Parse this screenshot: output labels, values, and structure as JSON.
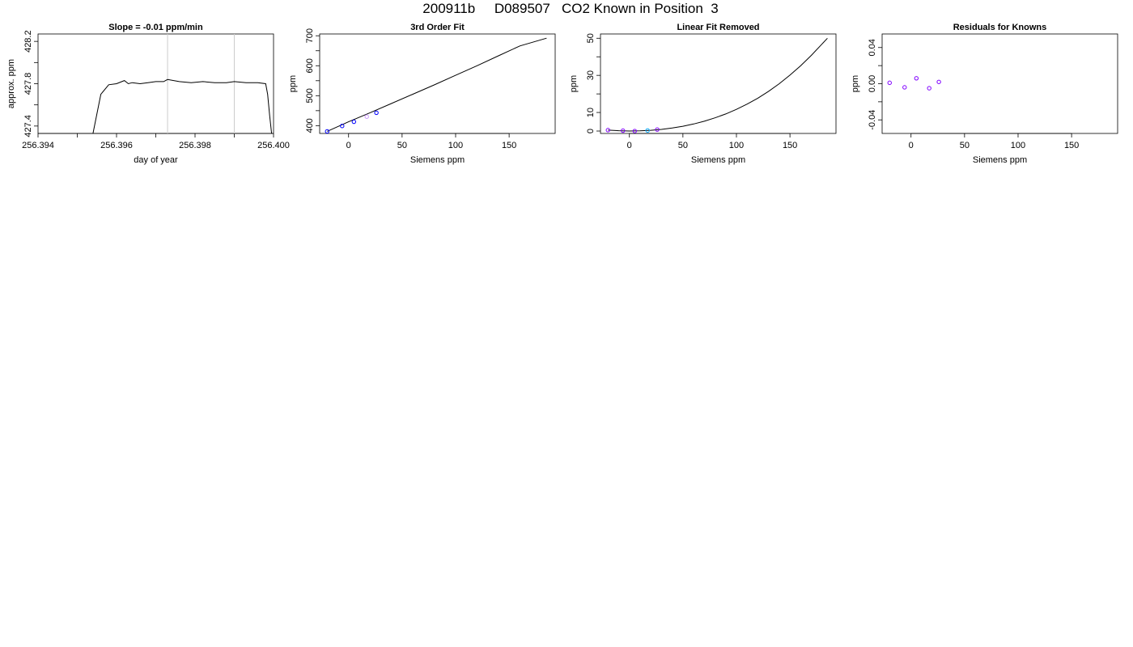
{
  "page_title": "200911b     D089507   CO2 Known in Position  3",
  "chart_data": [
    {
      "type": "line",
      "title": "Slope =  -0.01  ppm/min",
      "xlabel": "day of year",
      "ylabel": "approx. ppm",
      "xlim": [
        256.394,
        256.4
      ],
      "ylim": [
        427.33,
        428.27
      ],
      "x_ticks": [
        256.394,
        256.395,
        256.396,
        256.397,
        256.398,
        256.399,
        256.4
      ],
      "x_tick_labels": [
        "256.394",
        "",
        "256.396",
        "",
        "256.398",
        "",
        "256.400"
      ],
      "y_ticks": [
        427.4,
        427.6,
        427.8,
        428.0,
        428.2
      ],
      "y_tick_labels": [
        "427.4",
        "",
        "427.8",
        "",
        "428.2"
      ],
      "vlines": [
        256.3973,
        256.399
      ],
      "vline_color": "#cccccc",
      "line_color": "#000000",
      "accent_color": "#ff0000",
      "series": [
        {
          "x": [
            256.3954,
            256.3956,
            256.3958,
            256.396,
            256.3962,
            256.3963,
            256.3964,
            256.3966,
            256.3968,
            256.397,
            256.3972,
            256.3973,
            256.3976,
            256.3979,
            256.3982,
            256.3985,
            256.3988,
            256.399,
            256.3993,
            256.3996,
            256.3998,
            256.39985,
            256.3999,
            256.39995
          ],
          "y": [
            427.33,
            427.7,
            427.79,
            427.8,
            427.83,
            427.8,
            427.81,
            427.8,
            427.81,
            427.82,
            427.82,
            427.84,
            427.82,
            427.81,
            427.82,
            427.81,
            427.81,
            427.82,
            427.81,
            427.81,
            427.8,
            427.7,
            427.5,
            427.33
          ]
        }
      ]
    },
    {
      "type": "scatter",
      "title": "3rd Order Fit",
      "xlabel": "Siemens ppm",
      "ylabel": "ppm",
      "xlim": [
        -27,
        193
      ],
      "ylim": [
        374,
        706
      ],
      "x_ticks": [
        0,
        50,
        100,
        150
      ],
      "x_tick_labels": [
        "0",
        "50",
        "100",
        "150"
      ],
      "y_ticks": [
        400,
        450,
        500,
        550,
        600,
        650,
        700
      ],
      "y_tick_labels": [
        "400",
        "",
        "500",
        "",
        "600",
        "",
        "700"
      ],
      "curve_color": "#000000",
      "curve": {
        "x": [
          -20,
          0,
          20,
          40,
          60,
          80,
          100,
          120,
          140,
          160,
          185
        ],
        "y": [
          381,
          413,
          443,
          474,
          505,
          536,
          568,
          600,
          633,
          666,
          692
        ]
      },
      "points": {
        "x": [
          -20,
          -6,
          5,
          17,
          26
        ],
        "y": [
          381,
          399,
          413,
          430,
          443
        ],
        "colors": [
          "#0000ff",
          "#0000ff",
          "#0000ff",
          "#cc99ff",
          "#0000ff"
        ]
      }
    },
    {
      "type": "scatter",
      "title": "Linear Fit Removed",
      "xlabel": "Siemens ppm",
      "ylabel": "ppm",
      "xlim": [
        -27,
        193
      ],
      "ylim": [
        -1.3,
        52.3
      ],
      "x_ticks": [
        0,
        50,
        100,
        150
      ],
      "x_tick_labels": [
        "0",
        "50",
        "100",
        "150"
      ],
      "y_ticks": [
        0,
        10,
        20,
        30,
        40,
        50
      ],
      "y_tick_labels": [
        "0",
        "10",
        "",
        "30",
        "",
        "50"
      ],
      "curve_color": "#000000",
      "curve": {
        "x": [
          -20,
          -10,
          0,
          10,
          20,
          30,
          40,
          50,
          60,
          70,
          80,
          90,
          100,
          110,
          120,
          130,
          140,
          150,
          160,
          170,
          185
        ],
        "y": [
          0.5,
          0.2,
          0,
          0.1,
          0.4,
          0.9,
          1.6,
          2.6,
          3.8,
          5.3,
          7.1,
          9.2,
          11.7,
          14.5,
          17.7,
          21.4,
          25.5,
          30.1,
          35.2,
          40.8,
          50
        ]
      },
      "points": {
        "x": [
          -20,
          -6,
          5,
          17,
          26
        ],
        "y": [
          0.5,
          0.2,
          0,
          0.3,
          0.8
        ],
        "colors": [
          "#8000ff",
          "#8000ff",
          "#8000ff",
          "#00aaff",
          "#8000ff"
        ]
      }
    },
    {
      "type": "scatter",
      "title": "Residuals for Knowns",
      "xlabel": "Siemens ppm",
      "ylabel": "ppm",
      "xlim": [
        -27,
        193
      ],
      "ylim": [
        -0.055,
        0.055
      ],
      "x_ticks": [
        0,
        50,
        100,
        150
      ],
      "x_tick_labels": [
        "0",
        "50",
        "100",
        "150"
      ],
      "y_ticks": [
        -0.04,
        -0.02,
        0.0,
        0.02,
        0.04
      ],
      "y_tick_labels": [
        "-0.04",
        "",
        "0.00",
        "",
        "0.04"
      ],
      "points": {
        "x": [
          -20,
          -6,
          5,
          17,
          26
        ],
        "y": [
          0.001,
          -0.004,
          0.006,
          -0.005,
          0.002
        ],
        "colors": [
          "#8000ff",
          "#8000ff",
          "#8000ff",
          "#8000ff",
          "#8000ff"
        ]
      }
    }
  ]
}
